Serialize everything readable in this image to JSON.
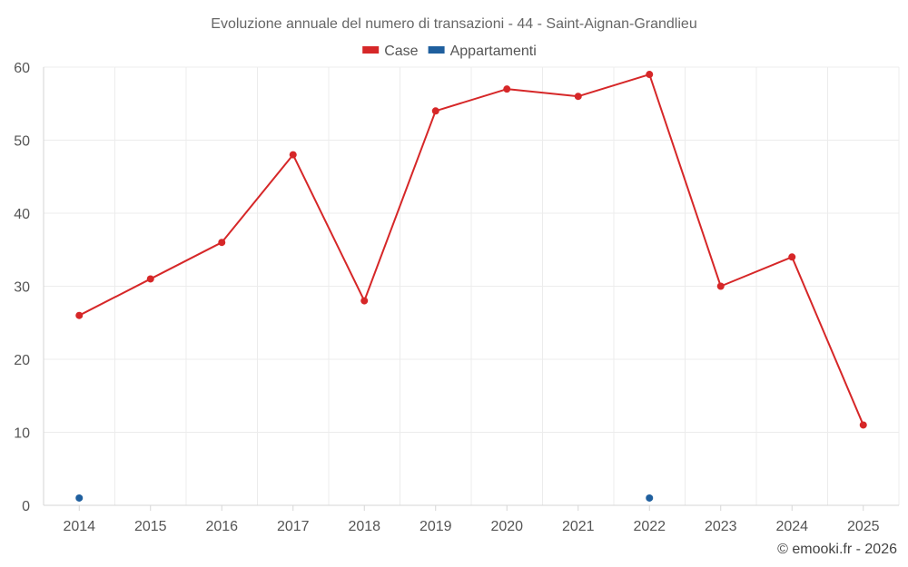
{
  "chart_data": {
    "type": "line",
    "title": "Evoluzione annuale del numero di transazioni - 44 - Saint-Aignan-Grandlieu",
    "categories": [
      "2014",
      "2015",
      "2016",
      "2017",
      "2018",
      "2019",
      "2020",
      "2021",
      "2022",
      "2023",
      "2024",
      "2025"
    ],
    "ylim": [
      0,
      60
    ],
    "yticks": [
      0,
      10,
      20,
      30,
      40,
      50,
      60
    ],
    "grid": true,
    "legend_position": "top-center",
    "series": [
      {
        "name": "Case",
        "color": "#d62728",
        "show_line": true,
        "values": [
          26,
          31,
          36,
          48,
          28,
          54,
          57,
          56,
          59,
          30,
          34,
          11
        ]
      },
      {
        "name": "Appartamenti",
        "color": "#1f5f9e",
        "show_line": false,
        "values": [
          1,
          null,
          null,
          null,
          null,
          null,
          null,
          null,
          1,
          null,
          null,
          null
        ]
      }
    ]
  },
  "credit": "© emooki.fr - 2026"
}
